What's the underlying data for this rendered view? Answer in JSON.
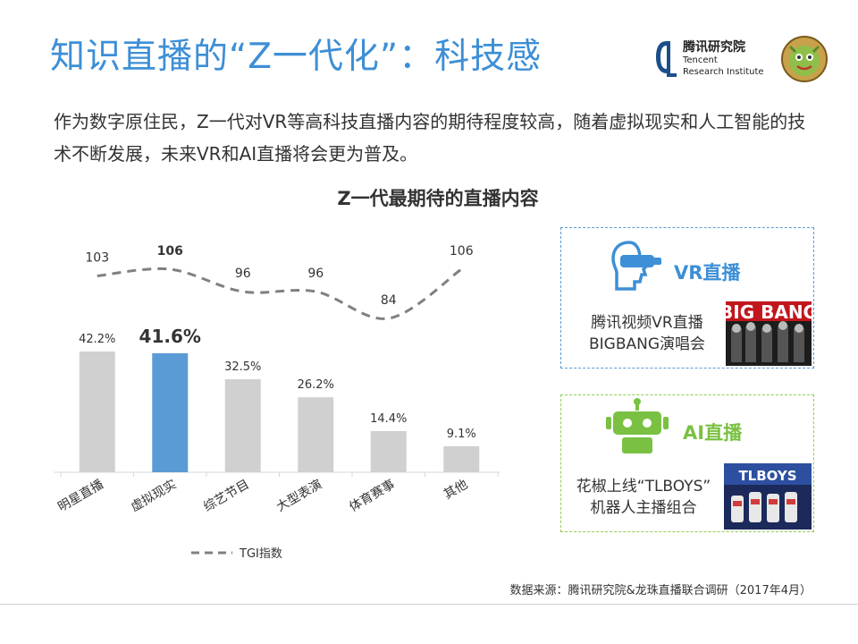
{
  "title": "知识直播的“Z一代化”：科技感",
  "logo": {
    "cn": "腾讯研究院",
    "en_line1": "Tencent",
    "en_line2": "Research Institute"
  },
  "description": "作为数字原住民，Z一代对VR等高科技直播内容的期待程度较高，随着虚拟现实和人工智能的技术不断发展，未来VR和AI直播将会更为普及。",
  "chart_title": "Z一代最期待的直播内容",
  "chart_data": {
    "type": "bar",
    "title": "Z一代最期待的直播内容",
    "categories": [
      "明星直播",
      "虚拟现实",
      "综艺节目",
      "大型表演",
      "体育赛事",
      "其他"
    ],
    "series": [
      {
        "values": [
          42.2,
          41.6,
          32.5,
          26.2,
          14.4,
          9.1
        ],
        "labels": [
          "42.2%",
          "41.6%",
          "32.5%",
          "26.2%",
          "14.4%",
          "9.1%"
        ],
        "highlight_index": 1
      },
      {
        "name": "TGI指数",
        "type": "line",
        "style": "dashed",
        "values": [
          103,
          106,
          96,
          96,
          84,
          106
        ],
        "labels": [
          "103",
          "106",
          "96",
          "96",
          "84",
          "106"
        ]
      }
    ],
    "colors": {
      "bar": "#d0d0d0",
      "highlight": "#5b9bd5",
      "line": "#808080"
    }
  },
  "legend": {
    "label": "TGI指数"
  },
  "cards": {
    "vr": {
      "heading": "VR直播",
      "line1": "腾讯视频VR直播",
      "line2": "BIGBANG演唱会",
      "thumb_text": "BIG BANG",
      "icon": "vr-headset-icon",
      "color": "#3d8fd6"
    },
    "ai": {
      "heading": "AI直播",
      "line1": "花椒上线“TLBOYS”",
      "line2": "机器人主播组合",
      "thumb_text": "TLBOYS",
      "icon": "robot-icon",
      "color": "#7ac143"
    }
  },
  "footer": "数据来源：腾讯研究院&龙珠直播联合调研（2017年4月）"
}
